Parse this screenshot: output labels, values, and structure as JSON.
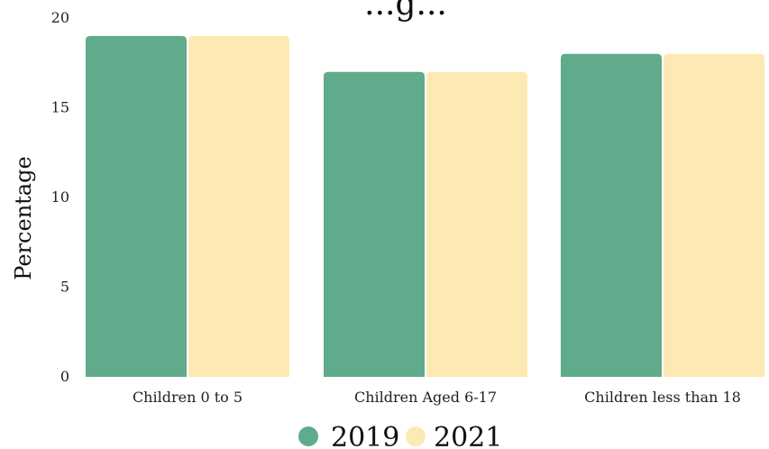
{
  "chart_data": {
    "type": "bar",
    "title": "...g...",
    "xlabel": "",
    "ylabel": "Percentage",
    "categories": [
      "Children 0 to 5",
      "Children Aged 6-17",
      "Children less than 18"
    ],
    "series": [
      {
        "name": "2019",
        "values": [
          19,
          17,
          18
        ],
        "color": "#5fab8b"
      },
      {
        "name": "2021",
        "values": [
          19,
          17,
          18
        ],
        "color": "#fde9b3"
      }
    ],
    "ylim": [
      0,
      20
    ],
    "yticks": [
      0,
      5,
      10,
      15,
      20
    ],
    "grid": false,
    "legend_position": "bottom"
  }
}
